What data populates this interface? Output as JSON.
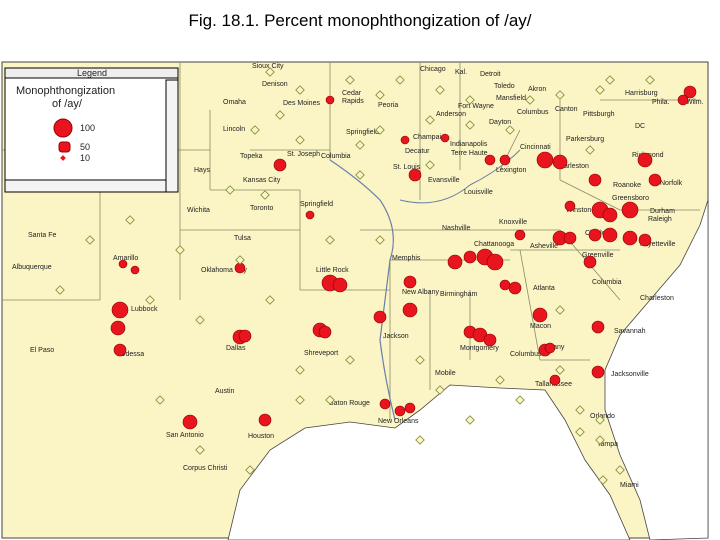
{
  "title": "Fig. 18.1. Percent monophthongization of /ay/",
  "legend": {
    "window_title": "Legend",
    "heading": [
      "Monophthongization",
      "of /ay/"
    ],
    "items": [
      100,
      50,
      10
    ]
  },
  "cities": [
    "Sioux City",
    "Denison",
    "Omaha",
    "Des Moines",
    "Lincoln",
    "Cedar",
    "Rapids",
    "Peoria",
    "Chicago",
    "Kal.",
    "Detroit",
    "Toledo",
    "Akron",
    "Mansfield",
    "Fort Wayne",
    "Columbus",
    "Canton",
    "Pittsburgh",
    "Harrisburg",
    "Phila.",
    "Wilm.",
    "Dayton",
    "Anderson",
    "Springfield",
    "Champaign",
    "Indianapolis",
    "Terre Haute",
    "Cincinnati",
    "Parkersburg",
    "DC",
    "Richmond",
    "Decatur",
    "St. Joseph",
    "Columbia",
    "Topeka",
    "Kansas City",
    "Hays",
    "St. Louis",
    "Evansville",
    "Lexington",
    "Charleston",
    "Roanoke",
    "Norfolk",
    "Louisville",
    "Wichita",
    "Toronto",
    "Springfield",
    "Greensboro",
    "Winston-Salem",
    "Durham",
    "Raleigh",
    "Santa Fe",
    "Tulsa",
    "Nashville",
    "Knoxville",
    "Asheville",
    "Charlotte",
    "Fayetteville",
    "Chattanooga",
    "Memphis",
    "Albuquerque",
    "Amarillo",
    "Oklahoma City",
    "Little Rock",
    "Greenville",
    "Columbia",
    "Charleston",
    "Atlanta",
    "Birmingham",
    "New Albany",
    "Lubbock",
    "Macon",
    "Savannah",
    "Dallas",
    "Shreveport",
    "Jackson",
    "Montgomery",
    "Columbus",
    "Albany",
    "El Paso",
    "Odessa",
    "Mobile",
    "Jacksonville",
    "Austin",
    "Tallahassee",
    "Baton Rouge",
    "New Orleans",
    "Orlando",
    "San Antonio",
    "Houston",
    "Tampa",
    "Corpus Christi",
    "Miami"
  ]
}
